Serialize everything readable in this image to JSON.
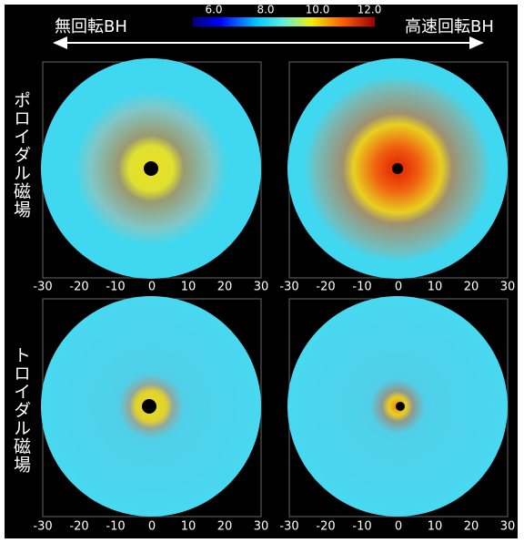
{
  "header": {
    "left": "無回転BH",
    "right": "高速回転BH"
  },
  "colorbar": {
    "ticks": [
      "6.0",
      "8.0",
      "10.0",
      "12.0"
    ]
  },
  "rows": [
    {
      "label": "ポロイダル磁場"
    },
    {
      "label": "トロイダル磁場"
    }
  ],
  "x_axis": {
    "ticks": [
      "-30",
      "-20",
      "-10",
      "0",
      "10",
      "20",
      "30"
    ]
  }
}
